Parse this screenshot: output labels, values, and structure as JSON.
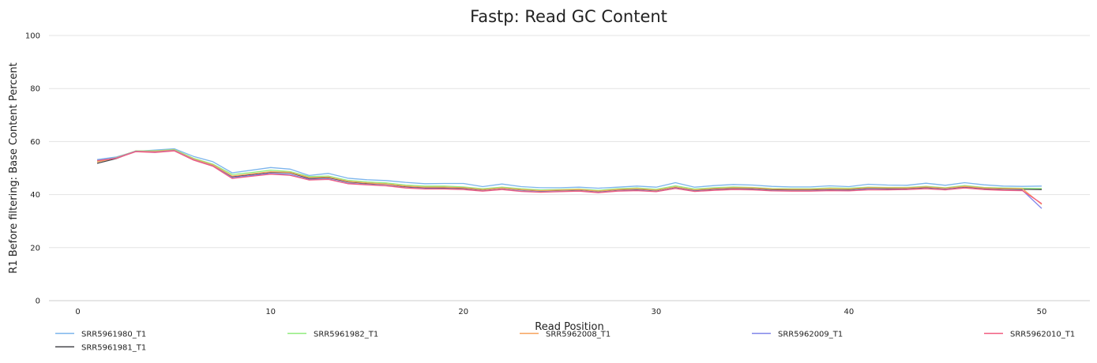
{
  "chart_data": {
    "type": "line",
    "title": "Fastp: Read GC Content",
    "xlabel": "Read Position",
    "ylabel": "R1 Before filtering: Base Content Percent",
    "xlim": [
      -1.5,
      52.5
    ],
    "ylim": [
      0,
      100
    ],
    "xticks": [
      0,
      10,
      20,
      30,
      40,
      50
    ],
    "yticks": [
      0,
      20,
      40,
      60,
      80,
      100
    ],
    "grid": true,
    "legend_position": "bottom",
    "x": [
      1,
      2,
      3,
      4,
      5,
      6,
      7,
      8,
      9,
      10,
      11,
      12,
      13,
      14,
      15,
      16,
      17,
      18,
      19,
      20,
      21,
      22,
      23,
      24,
      25,
      26,
      27,
      28,
      29,
      30,
      31,
      32,
      33,
      34,
      35,
      36,
      37,
      38,
      39,
      40,
      41,
      42,
      43,
      44,
      45,
      46,
      47,
      48,
      49,
      50
    ],
    "series": [
      {
        "name": "SRR5961980_T1",
        "color": "#7cb5ec",
        "values": [
          53.2,
          54.2,
          56.3,
          56.8,
          57.3,
          54.4,
          52.4,
          48.2,
          49.2,
          50.2,
          49.6,
          47.2,
          48.0,
          46.2,
          45.6,
          45.3,
          44.6,
          44.1,
          44.2,
          44.2,
          43.0,
          44.0,
          43.0,
          42.6,
          42.6,
          42.8,
          42.4,
          42.8,
          43.2,
          42.8,
          44.5,
          42.8,
          43.4,
          43.8,
          43.6,
          43.1,
          42.9,
          42.9,
          43.3,
          43.0,
          43.9,
          43.6,
          43.5,
          44.3,
          43.5,
          44.5,
          43.7,
          43.2,
          43.1,
          43.2
        ]
      },
      {
        "name": "SRR5961981_T1",
        "color": "#434348",
        "values": [
          51.8,
          53.6,
          56.4,
          56.2,
          56.7,
          53.2,
          51.0,
          46.8,
          47.6,
          48.4,
          48.2,
          46.1,
          46.4,
          44.8,
          44.2,
          43.9,
          43.0,
          42.6,
          42.6,
          42.4,
          41.8,
          42.4,
          41.8,
          41.4,
          41.6,
          41.8,
          41.2,
          41.8,
          42.0,
          41.6,
          42.8,
          41.6,
          42.1,
          42.4,
          42.3,
          41.9,
          41.8,
          41.8,
          42.0,
          41.9,
          42.4,
          42.3,
          42.3,
          42.7,
          42.3,
          42.9,
          42.3,
          42.1,
          42.0,
          41.9
        ]
      },
      {
        "name": "SRR5961982_T1",
        "color": "#90ed7d",
        "values": [
          52.6,
          54.0,
          56.5,
          56.5,
          57.0,
          53.7,
          51.5,
          47.6,
          48.3,
          49.2,
          48.7,
          46.8,
          47.0,
          45.4,
          44.8,
          44.4,
          43.6,
          43.2,
          43.2,
          42.9,
          42.2,
          42.8,
          42.2,
          41.8,
          41.9,
          42.1,
          41.6,
          42.2,
          42.5,
          42.0,
          43.3,
          42.1,
          42.6,
          42.9,
          42.7,
          42.3,
          42.2,
          42.2,
          42.5,
          42.4,
          42.8,
          42.7,
          42.7,
          43.1,
          42.6,
          43.4,
          42.7,
          42.5,
          42.4,
          42.3
        ]
      },
      {
        "name": "SRR5962008_T1",
        "color": "#f7a35c",
        "values": [
          52.3,
          53.9,
          56.4,
          56.3,
          56.8,
          53.4,
          51.2,
          47.0,
          47.8,
          48.6,
          48.4,
          46.4,
          46.6,
          45.0,
          44.4,
          44.0,
          43.2,
          42.8,
          42.8,
          42.6,
          41.9,
          42.5,
          41.9,
          41.5,
          41.7,
          41.9,
          41.3,
          41.9,
          42.2,
          41.7,
          42.9,
          41.8,
          42.3,
          42.6,
          42.5,
          42.1,
          42.0,
          42.0,
          42.2,
          42.1,
          42.6,
          42.5,
          42.5,
          42.9,
          42.4,
          43.1,
          42.5,
          42.3,
          42.2,
          36.3
        ]
      },
      {
        "name": "SRR5962009_T1",
        "color": "#8085e9",
        "values": [
          52.9,
          53.8,
          56.3,
          56.0,
          56.6,
          53.1,
          50.8,
          46.4,
          47.2,
          48.0,
          47.6,
          45.7,
          45.9,
          44.3,
          43.8,
          43.4,
          42.6,
          42.3,
          42.2,
          42.0,
          41.4,
          42.0,
          41.3,
          41.0,
          41.2,
          41.4,
          40.9,
          41.4,
          41.6,
          41.2,
          42.4,
          41.3,
          41.7,
          42.0,
          41.9,
          41.5,
          41.4,
          41.4,
          41.6,
          41.5,
          42.0,
          41.9,
          42.0,
          42.3,
          41.9,
          42.6,
          42.0,
          41.7,
          41.6,
          34.8
        ]
      },
      {
        "name": "SRR5962010_T1",
        "color": "#f15c80",
        "values": [
          52.8,
          53.7,
          56.2,
          55.9,
          56.5,
          53.0,
          50.7,
          46.1,
          46.9,
          47.7,
          47.3,
          45.5,
          45.7,
          44.1,
          43.7,
          43.3,
          42.5,
          42.1,
          42.1,
          41.9,
          41.3,
          41.9,
          41.2,
          40.9,
          41.1,
          41.3,
          40.7,
          41.3,
          41.5,
          41.1,
          42.3,
          41.2,
          41.6,
          41.9,
          41.8,
          41.4,
          41.3,
          41.3,
          41.5,
          41.4,
          41.8,
          41.8,
          41.9,
          42.2,
          41.8,
          42.5,
          41.9,
          41.6,
          41.5,
          36.6
        ]
      }
    ]
  }
}
